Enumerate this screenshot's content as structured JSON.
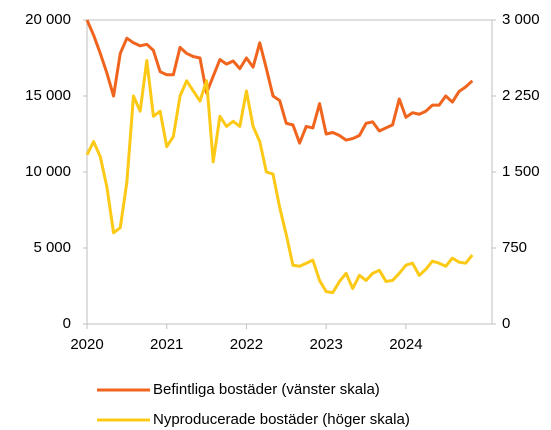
{
  "chart_data": {
    "type": "line",
    "x": [
      2020,
      2020.083,
      2020.167,
      2020.25,
      2020.333,
      2020.417,
      2020.5,
      2020.583,
      2020.667,
      2020.75,
      2020.833,
      2020.917,
      2021,
      2021.083,
      2021.167,
      2021.25,
      2021.333,
      2021.417,
      2021.5,
      2021.583,
      2021.667,
      2021.75,
      2021.833,
      2021.917,
      2022,
      2022.083,
      2022.167,
      2022.25,
      2022.333,
      2022.417,
      2022.5,
      2022.583,
      2022.667,
      2022.75,
      2022.833,
      2022.917,
      2023,
      2023.083,
      2023.167,
      2023.25,
      2023.333,
      2023.417,
      2023.5,
      2023.583,
      2023.667,
      2023.75,
      2023.833,
      2023.917,
      2024,
      2024.083,
      2024.167,
      2024.25,
      2024.333,
      2024.417,
      2024.5,
      2024.583,
      2024.667,
      2024.75,
      2024.833
    ],
    "series": [
      {
        "name": "Befintliga bostäder (vänster skala)",
        "color": "#f0641e",
        "values": [
          20000,
          19000,
          17800,
          16500,
          15000,
          17800,
          18800,
          18500,
          18300,
          18400,
          18000,
          16600,
          16400,
          16400,
          18200,
          17800,
          17600,
          17500,
          15200,
          16300,
          17400,
          17100,
          17300,
          16800,
          17500,
          16900,
          18500,
          16800,
          15000,
          14700,
          13200,
          13100,
          11900,
          13000,
          12900,
          14500,
          12500,
          12600,
          12400,
          12100,
          12200,
          12400,
          13200,
          13300,
          12700,
          12900,
          13100,
          14800,
          13600,
          13900,
          13800,
          14000,
          14400,
          14400,
          15000,
          14600,
          15300,
          15600,
          16000
        ]
      },
      {
        "name": "Nyproducerade bostäder (höger skala)",
        "color": "#fcc916",
        "axis": "y2",
        "values": [
          1670,
          1800,
          1650,
          1350,
          900,
          950,
          1400,
          2250,
          2100,
          2600,
          2050,
          2100,
          1750,
          1850,
          2250,
          2400,
          2300,
          2200,
          2400,
          1600,
          2050,
          1950,
          2000,
          1950,
          2300,
          1950,
          1800,
          1500,
          1480,
          1150,
          880,
          580,
          570,
          600,
          630,
          430,
          320,
          310,
          420,
          500,
          350,
          480,
          430,
          500,
          530,
          420,
          430,
          500,
          580,
          600,
          480,
          540,
          620,
          600,
          570,
          650,
          610,
          600,
          680
        ]
      }
    ],
    "xlim": [
      2020,
      2025.08
    ],
    "xticks": [
      2020,
      2021,
      2022,
      2023,
      2024
    ],
    "ylim": [
      0,
      20000
    ],
    "yticks": [
      0,
      {
        "value": 5000,
        "label": "5 000"
      },
      {
        "value": 10000,
        "label": "10 000"
      },
      {
        "value": 15000,
        "label": "15 000"
      },
      {
        "value": 20000,
        "label": "20 000"
      }
    ],
    "y2lim": [
      0,
      3000
    ],
    "y2ticks": [
      0,
      750,
      {
        "value": 1500,
        "label": "1 500"
      },
      {
        "value": 2250,
        "label": "2 250"
      },
      {
        "value": 3000,
        "label": "3 000"
      }
    ]
  }
}
